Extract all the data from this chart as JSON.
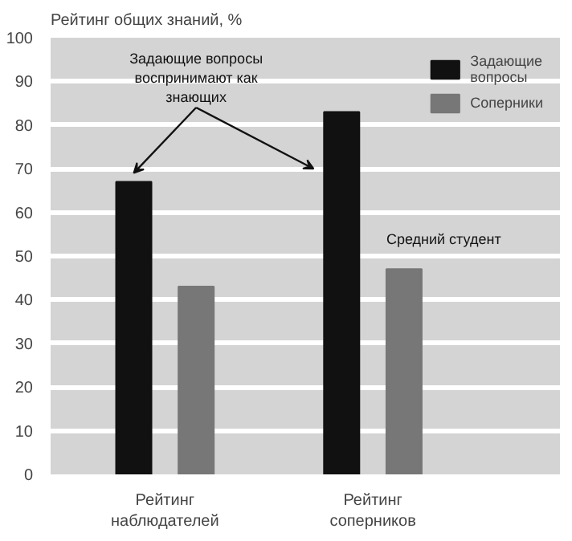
{
  "chart_data": {
    "type": "bar",
    "title": "Рейтинг общих знаний, %",
    "categories": [
      "Рейтинг\nнаблюдателей",
      "Рейтинг\nсоперников"
    ],
    "series": [
      {
        "name": "Задающие\nвопросы",
        "color": "#111111",
        "values": [
          67,
          83
        ]
      },
      {
        "name": "Соперники",
        "color": "#777777",
        "values": [
          43,
          47
        ]
      }
    ],
    "ylim": [
      0,
      100
    ],
    "yticks": [
      0,
      10,
      20,
      30,
      40,
      50,
      60,
      70,
      80,
      90,
      100
    ],
    "grid": "y",
    "legend": "top right",
    "annotations": [
      {
        "text": "Задающие вопросы\nвоспринимают как\nзнающих"
      },
      "Средний студент"
    ]
  }
}
